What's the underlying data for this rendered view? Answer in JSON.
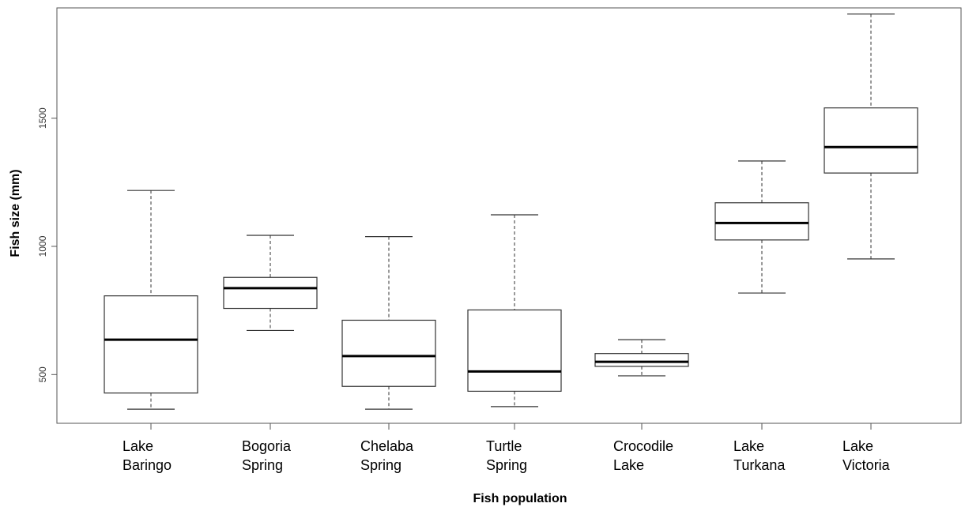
{
  "chart_data": {
    "type": "boxplot",
    "xlabel": "Fish population",
    "ylabel": "Fish size (mm)",
    "yticks": [
      500,
      1000,
      1500
    ],
    "ylim": [
      310,
      1930
    ],
    "grid": false,
    "categories": [
      [
        "Lake",
        "Baringo"
      ],
      [
        "Bogoria",
        "Spring"
      ],
      [
        "Chelaba",
        "Spring"
      ],
      [
        "Turtle",
        "Spring"
      ],
      [
        "Crocodile",
        "Lake"
      ],
      [
        "Lake",
        "Turkana"
      ],
      [
        "Lake",
        "Victoria"
      ]
    ],
    "boxes": [
      {
        "min": 365,
        "q1": 428,
        "median": 636,
        "q3": 807,
        "max": 1218
      },
      {
        "min": 672,
        "q1": 758,
        "median": 837,
        "q3": 879,
        "max": 1043
      },
      {
        "min": 365,
        "q1": 454,
        "median": 572,
        "q3": 712,
        "max": 1038
      },
      {
        "min": 375,
        "q1": 435,
        "median": 512,
        "q3": 752,
        "max": 1123
      },
      {
        "min": 495,
        "q1": 532,
        "median": 550,
        "q3": 582,
        "max": 636
      },
      {
        "min": 818,
        "q1": 1025,
        "median": 1091,
        "q3": 1170,
        "max": 1333
      },
      {
        "min": 951,
        "q1": 1286,
        "median": 1387,
        "q3": 1540,
        "max": 1906
      }
    ]
  }
}
